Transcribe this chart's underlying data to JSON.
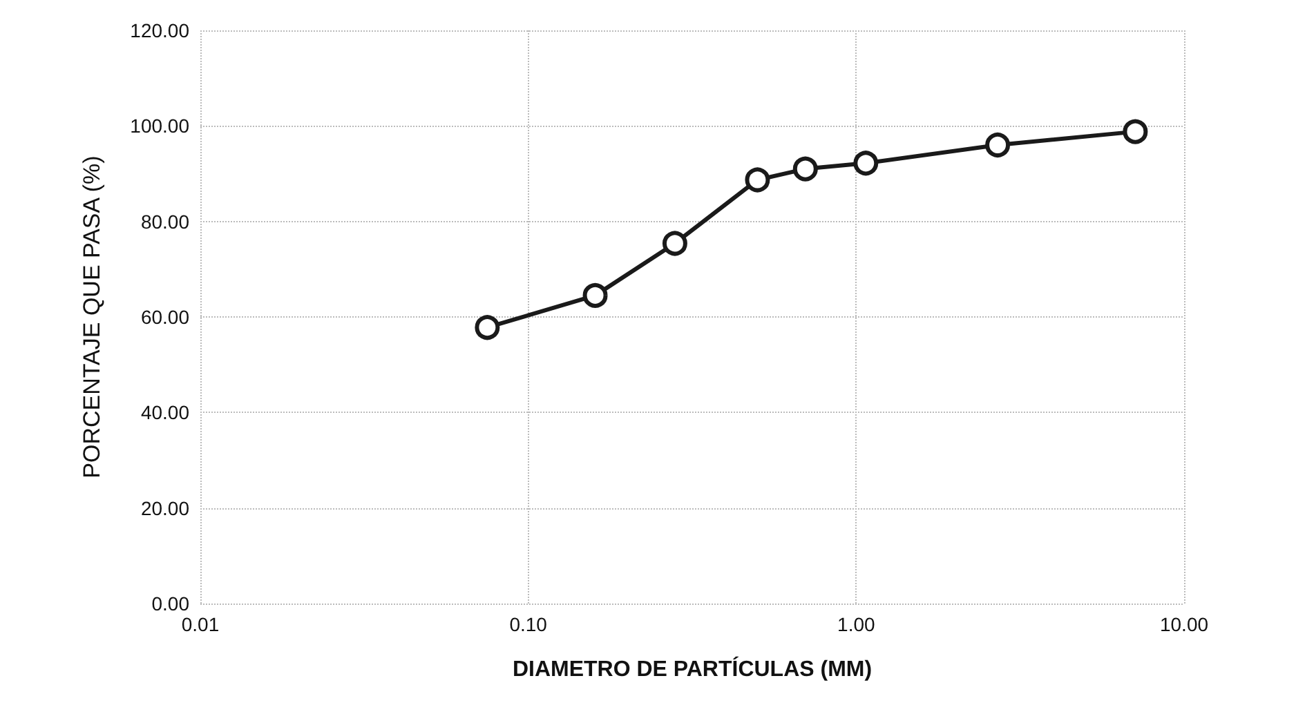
{
  "chart_data": {
    "type": "line",
    "xlabel": "DIAMETRO DE PARTÍCULAS (MM)",
    "ylabel": "PORCENTAJE QUE PASA (%)",
    "x": [
      0.075,
      0.16,
      0.28,
      0.5,
      0.7,
      1.07,
      2.7,
      7.1
    ],
    "series": [
      {
        "color": "#1a1a1a",
        "values": [
          57.8,
          64.5,
          75.4,
          88.7,
          91.0,
          92.2,
          96.0,
          98.8
        ]
      }
    ],
    "log": "x",
    "xlim": [
      0.01,
      10
    ],
    "xticks": [
      {
        "value": 0.01,
        "label": "0.01"
      },
      {
        "value": 0.1,
        "label": "0.10"
      },
      {
        "value": 1,
        "label": "1.00"
      },
      {
        "value": 10,
        "label": "10.00"
      }
    ],
    "ylim": [
      0,
      120
    ],
    "yticks": [
      {
        "value": 0,
        "label": "0.00"
      },
      {
        "value": 20,
        "label": "20.00"
      },
      {
        "value": 40,
        "label": "40.00"
      },
      {
        "value": 60,
        "label": "60.00"
      },
      {
        "value": 80,
        "label": "80.00"
      },
      {
        "value": 100,
        "label": "100.00"
      },
      {
        "value": 120,
        "label": "120.00"
      }
    ],
    "grid": true,
    "marker": "circle",
    "line_style": "solid"
  }
}
